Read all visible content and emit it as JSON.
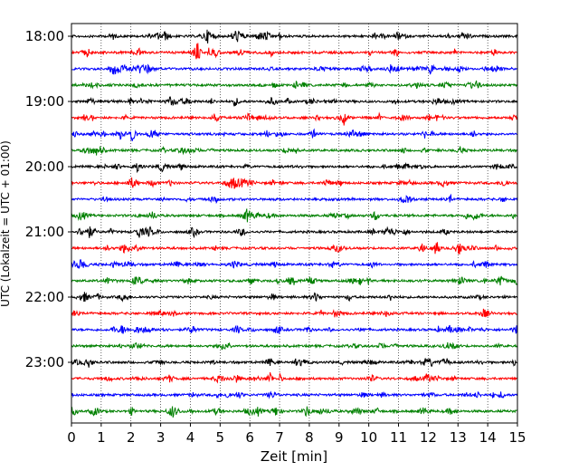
{
  "chart_data": {
    "type": "line",
    "xlabel": "Zeit  [min]",
    "ylabel": "UTC (Lokalzeit = UTC + 01:00)",
    "xlim": [
      0,
      15
    ],
    "xticks": [
      0,
      1,
      2,
      3,
      4,
      5,
      6,
      7,
      8,
      9,
      10,
      11,
      12,
      13,
      14,
      15
    ],
    "xtick_labels": [
      "0",
      "1",
      "2",
      "3",
      "4",
      "5",
      "6",
      "7",
      "8",
      "9",
      "10",
      "11",
      "12",
      "13",
      "14",
      "15"
    ],
    "ytick_labels": [
      "18:00",
      "19:00",
      "20:00",
      "21:00",
      "22:00",
      "23:00"
    ],
    "grid": "vertical dotted",
    "trace_start": "18:00",
    "trace_interval_min": 15,
    "trace_count": 24,
    "trace_colors": [
      "#000000",
      "#ff0000",
      "#0000ff",
      "#008000"
    ]
  }
}
